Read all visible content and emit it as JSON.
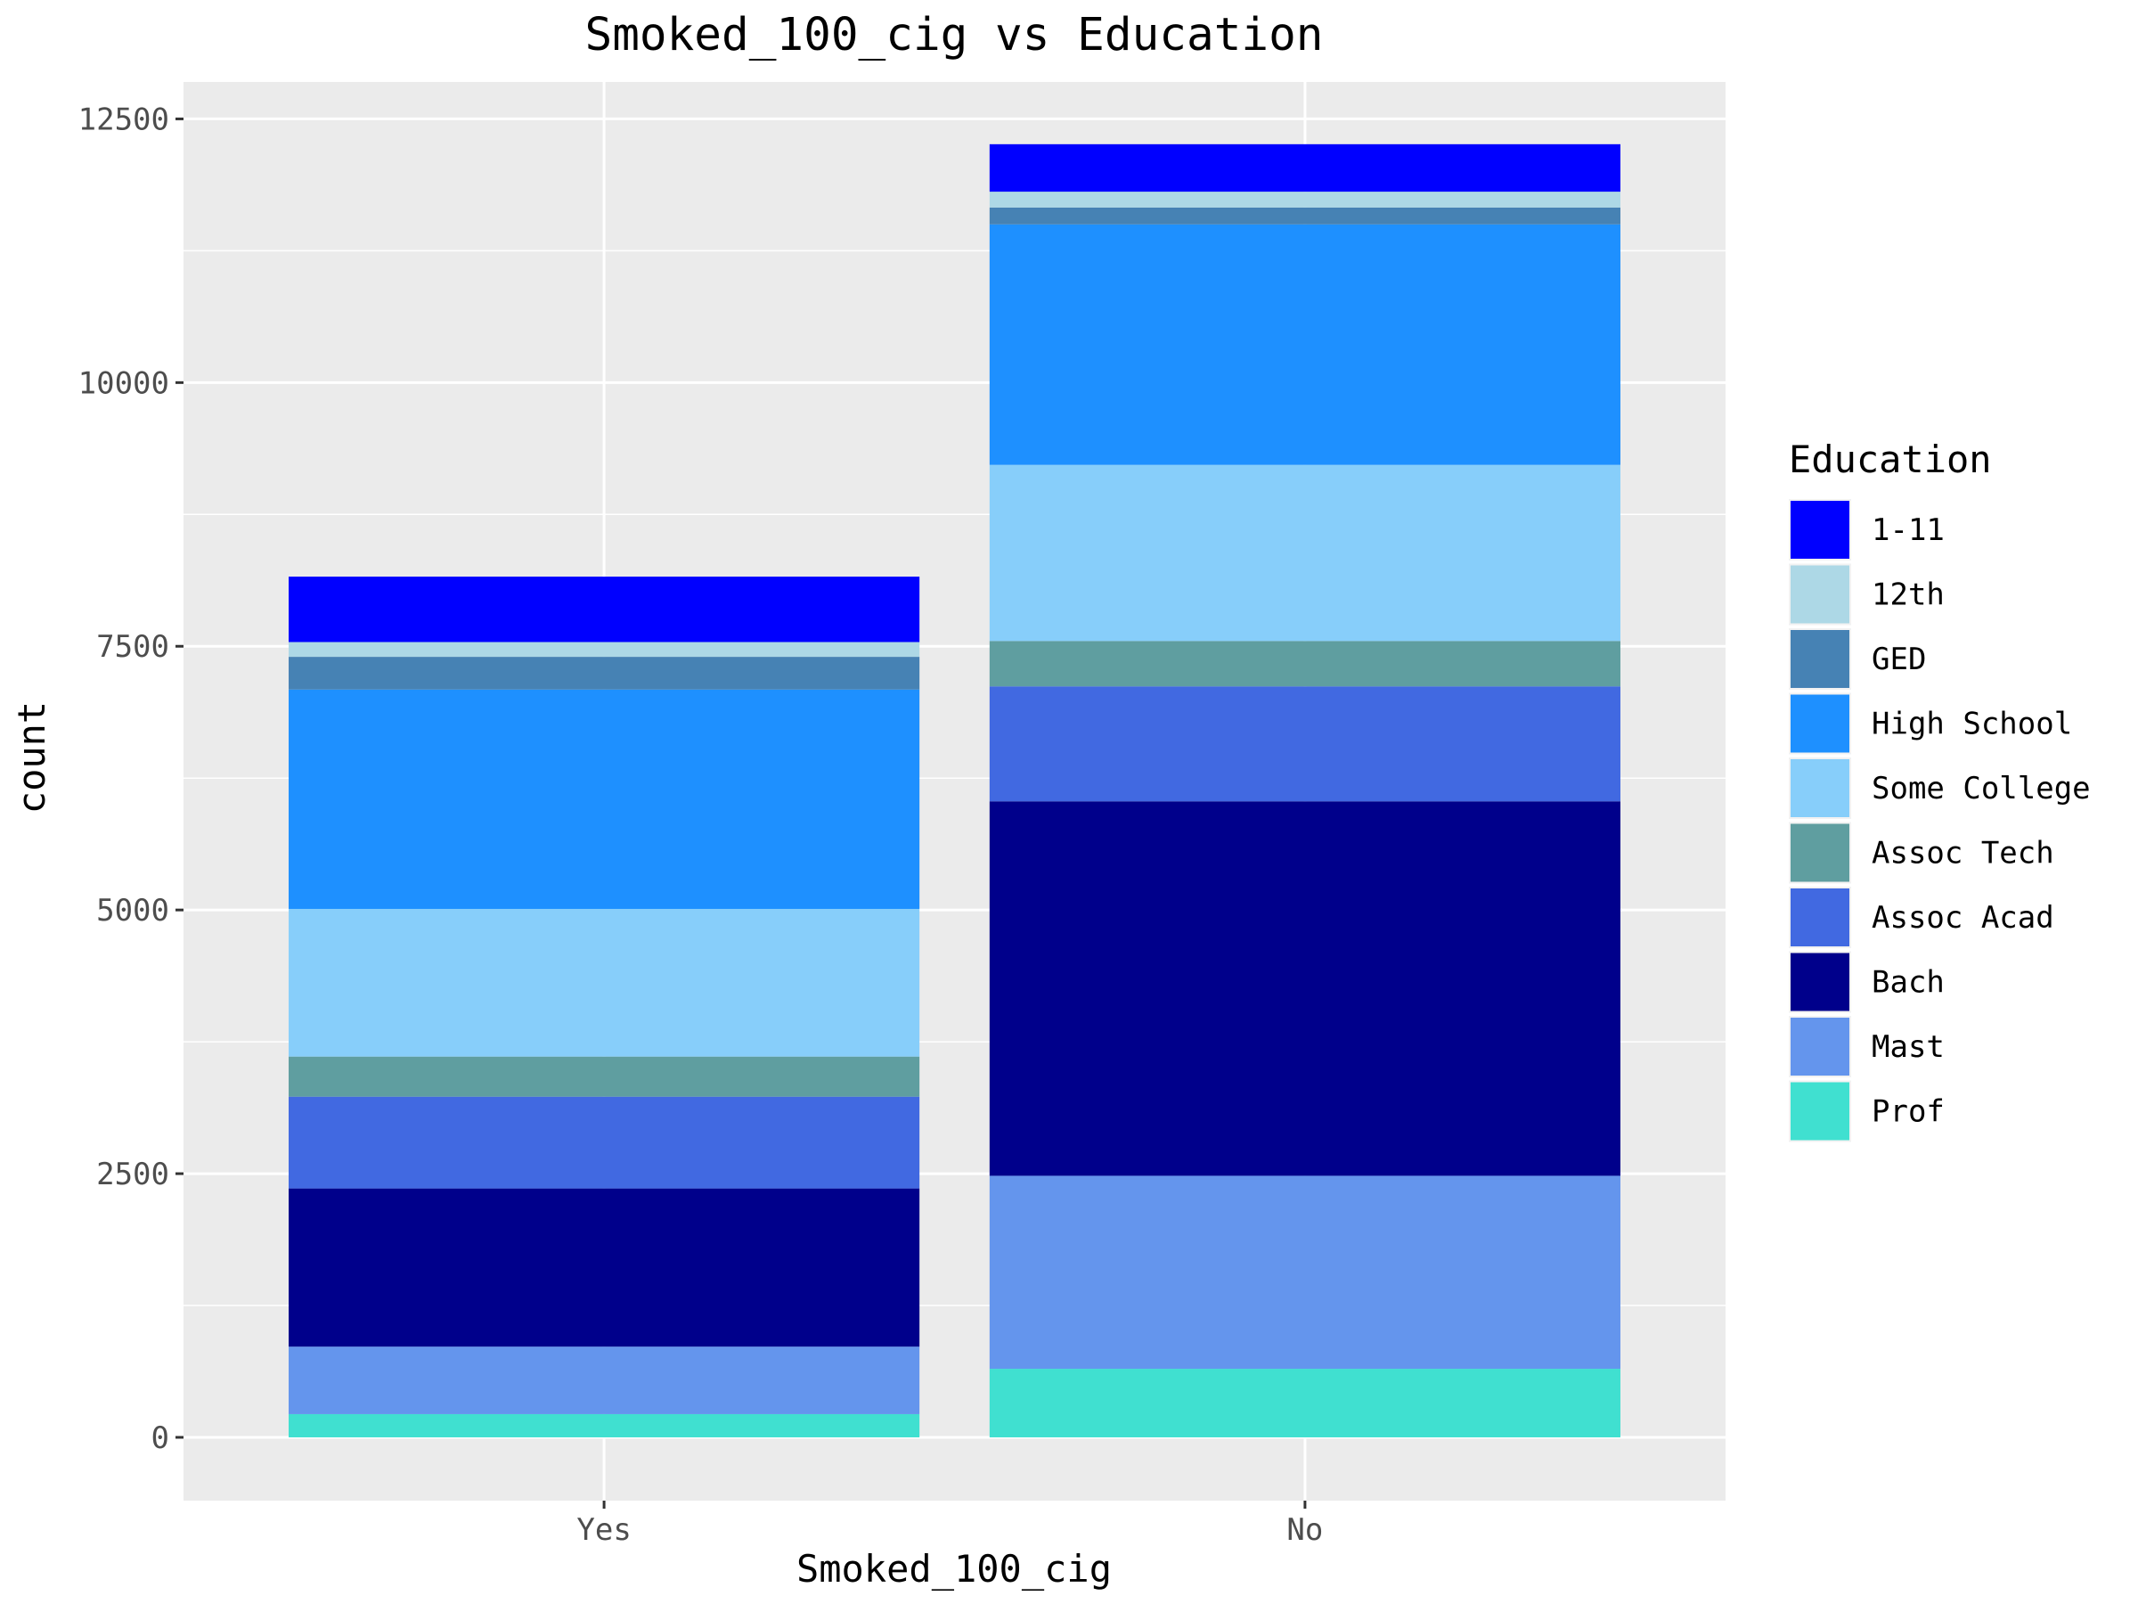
{
  "chart_data": {
    "type": "bar",
    "stacked": true,
    "title": "Smoked_100_cig vs Education",
    "xlabel": "Smoked_100_cig",
    "ylabel": "count",
    "categories": [
      "Yes",
      "No"
    ],
    "ylim": [
      -600,
      12850
    ],
    "yticks": [
      0,
      2500,
      5000,
      7500,
      10000,
      12500
    ],
    "ytick_labels": [
      "0",
      "2500",
      "5000",
      "7500",
      "10000",
      "12500"
    ],
    "grid": true,
    "legend": {
      "title": "Education",
      "position": "right"
    },
    "series": [
      {
        "name": "1-11",
        "color": "#0000FF",
        "values": [
          620,
          450
        ]
      },
      {
        "name": "12th",
        "color": "#ADD8E6",
        "values": [
          140,
          150
        ]
      },
      {
        "name": "GED",
        "color": "#4682B4",
        "values": [
          310,
          160
        ]
      },
      {
        "name": "High School",
        "color": "#1E90FF",
        "values": [
          2080,
          2280
        ]
      },
      {
        "name": "Some College",
        "color": "#87CEFA",
        "values": [
          1400,
          1670
        ]
      },
      {
        "name": "Assoc Tech",
        "color": "#5F9EA0",
        "values": [
          380,
          430
        ]
      },
      {
        "name": "Assoc Acad",
        "color": "#4169E1",
        "values": [
          870,
          1090
        ]
      },
      {
        "name": "Bach",
        "color": "#00008B",
        "values": [
          1500,
          3550
        ]
      },
      {
        "name": "Mast",
        "color": "#6495ED",
        "values": [
          640,
          1830
        ]
      },
      {
        "name": "Prof",
        "color": "#40E0D0",
        "values": [
          220,
          650
        ]
      }
    ]
  }
}
